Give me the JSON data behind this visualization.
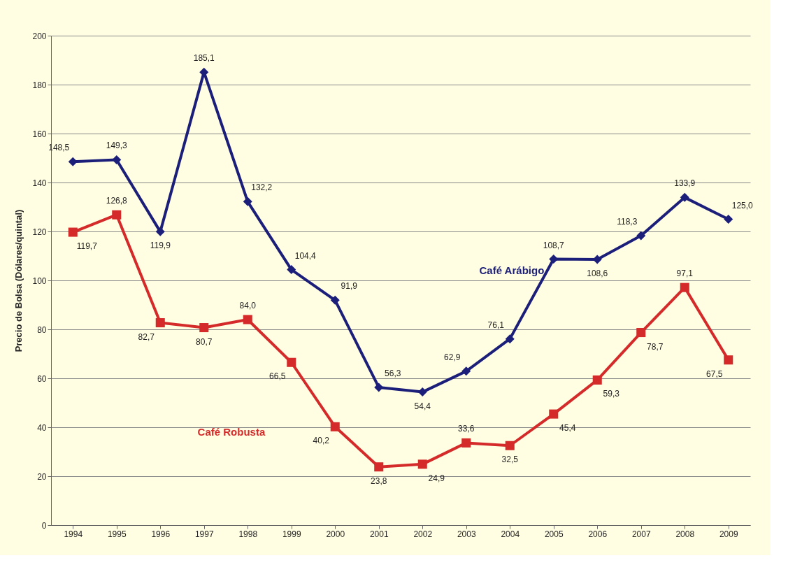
{
  "chart_data": {
    "type": "line",
    "ylabel": "Precio de Bolsa (Dólares/quintal)",
    "categories": [
      "1994",
      "1995",
      "1996",
      "1997",
      "1998",
      "1999",
      "2000",
      "2001",
      "2002",
      "2003",
      "2004",
      "2005",
      "2006",
      "2007",
      "2008",
      "2009"
    ],
    "series": [
      {
        "name": "Café Arábigo",
        "color": "#1c1f7a",
        "marker": "diamond",
        "values": [
          148.5,
          149.3,
          119.9,
          185.1,
          132.2,
          104.4,
          91.9,
          56.3,
          54.4,
          62.9,
          76.1,
          108.7,
          108.6,
          118.3,
          133.9,
          125.0
        ],
        "value_labels": [
          "148,5",
          "149,3",
          "119,9",
          "185,1",
          "132,2",
          "104,4",
          "91,9",
          "56,3",
          "54,4",
          "62,9",
          "76,1",
          "108,7",
          "108,6",
          "118,3",
          "133,9",
          "125,0"
        ]
      },
      {
        "name": "Café Robusta",
        "color": "#d42a2a",
        "marker": "square",
        "values": [
          119.7,
          126.8,
          82.7,
          80.7,
          84.0,
          66.5,
          40.2,
          23.8,
          24.9,
          33.6,
          32.5,
          45.4,
          59.3,
          78.7,
          97.1,
          67.5
        ],
        "value_labels": [
          "119,7",
          "126,8",
          "82,7",
          "80,7",
          "84,0",
          "66,5",
          "40,2",
          "23,8",
          "24,9",
          "33,6",
          "32,5",
          "45,4",
          "59,3",
          "78,7",
          "97,1",
          "67,5"
        ]
      }
    ],
    "ylim": [
      0,
      200
    ],
    "yticks": [
      0,
      20,
      40,
      60,
      80,
      100,
      120,
      140,
      160,
      180,
      200
    ],
    "grid": "y",
    "legend": false,
    "data_labels": true,
    "line_style": "solid"
  }
}
